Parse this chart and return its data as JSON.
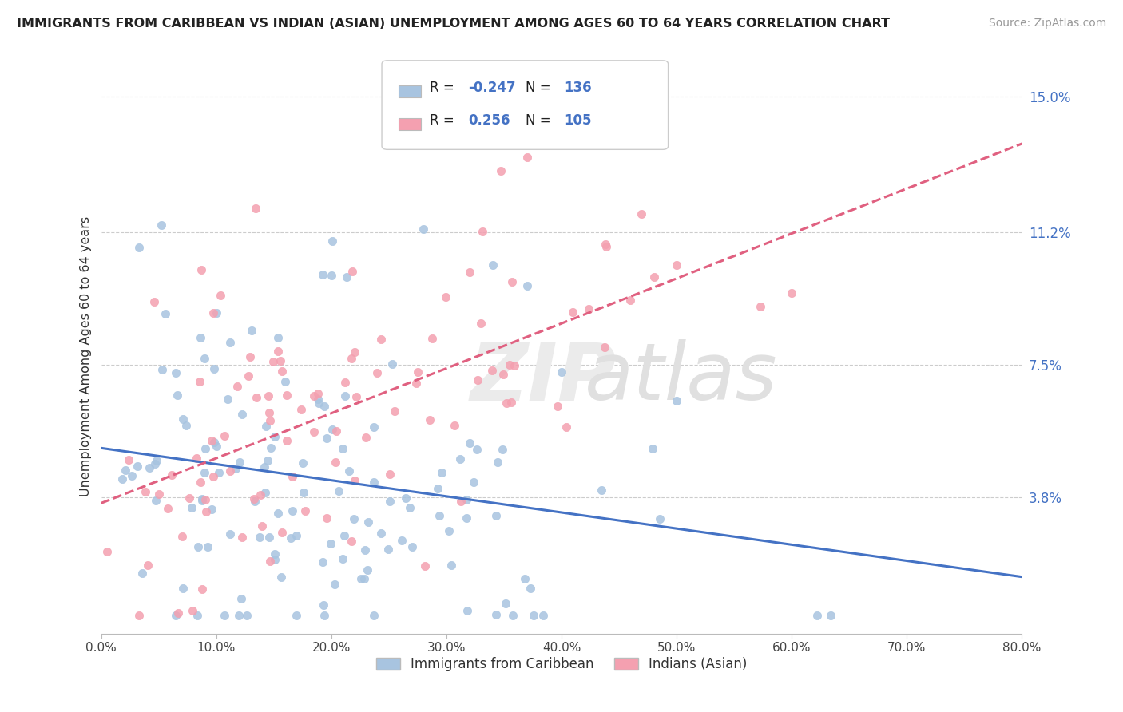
{
  "title": "IMMIGRANTS FROM CARIBBEAN VS INDIAN (ASIAN) UNEMPLOYMENT AMONG AGES 60 TO 64 YEARS CORRELATION CHART",
  "source": "Source: ZipAtlas.com",
  "ylabel": "Unemployment Among Ages 60 to 64 years",
  "xlim": [
    0.0,
    0.8
  ],
  "ylim": [
    0.0,
    0.155
  ],
  "xticks": [
    0.0,
    0.1,
    0.2,
    0.3,
    0.4,
    0.5,
    0.6,
    0.7,
    0.8
  ],
  "xtick_labels": [
    "0.0%",
    "10.0%",
    "20.0%",
    "30.0%",
    "40.0%",
    "50.0%",
    "60.0%",
    "70.0%",
    "80.0%"
  ],
  "ytick_labels_right": [
    "3.8%",
    "7.5%",
    "11.2%",
    "15.0%"
  ],
  "ytick_values_right": [
    0.038,
    0.075,
    0.112,
    0.15
  ],
  "gridline_values": [
    0.038,
    0.075,
    0.112,
    0.15
  ],
  "caribbean_R": -0.247,
  "caribbean_N": 136,
  "indian_R": 0.256,
  "indian_N": 105,
  "caribbean_color": "#a8c4e0",
  "indian_color": "#f4a0b0",
  "caribbean_line_color": "#4472c4",
  "indian_line_color": "#e06080",
  "legend_label_caribbean": "Immigrants from Caribbean",
  "legend_label_indian": "Indians (Asian)"
}
